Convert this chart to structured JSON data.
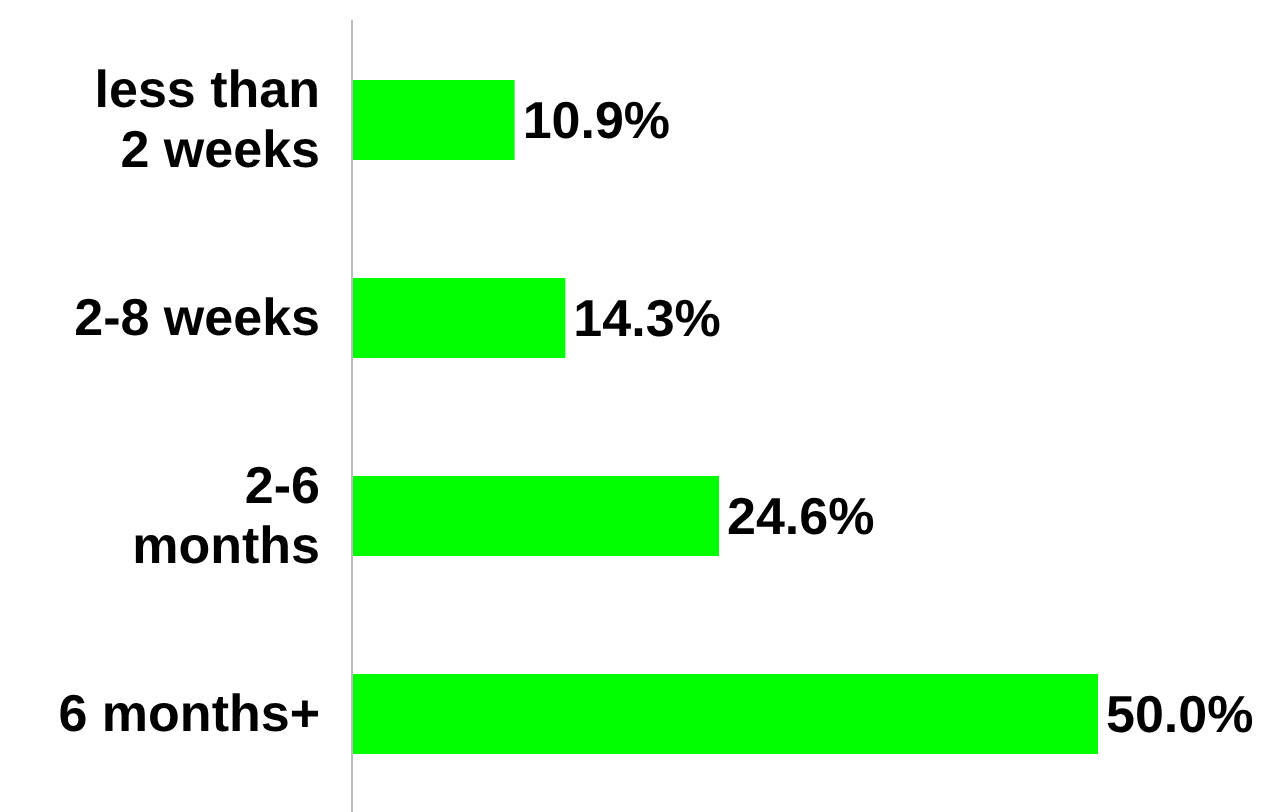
{
  "chart_data": {
    "type": "bar",
    "orientation": "horizontal",
    "categories": [
      "less than 2 weeks",
      "2-8 weeks",
      "2-6 months",
      "6 months+"
    ],
    "values": [
      10.9,
      14.3,
      24.6,
      50.0
    ],
    "value_labels": [
      "10.9%",
      "14.3%",
      "24.6%",
      "50.0%"
    ],
    "color": "#00ff00",
    "xlim": [
      0,
      50
    ],
    "tick_labels": "y",
    "grid": false
  }
}
